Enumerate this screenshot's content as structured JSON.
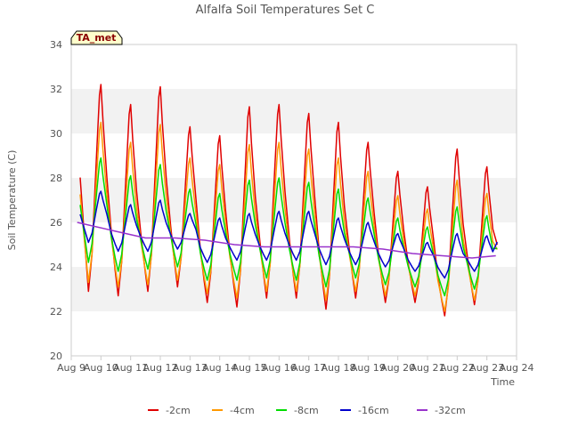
{
  "chart_data": {
    "type": "line",
    "title": "Alfalfa Soil Temperatures Set C",
    "xlabel": "Time",
    "ylabel": "Soil Temperature (C)",
    "ylim": [
      20,
      34
    ],
    "yticks": [
      20,
      22,
      24,
      26,
      28,
      30,
      32,
      34
    ],
    "xlim": [
      9,
      24
    ],
    "xticks": [
      9,
      10,
      11,
      12,
      13,
      14,
      15,
      16,
      17,
      18,
      19,
      20,
      21,
      22,
      23,
      24
    ],
    "xtick_labels": [
      "Aug 9",
      "Aug 10",
      "Aug 11",
      "Aug 12",
      "Aug 13",
      "Aug 14",
      "Aug 15",
      "Aug 16",
      "Aug 17",
      "Aug 18",
      "Aug 19",
      "Aug 20",
      "Aug 21",
      "Aug 22",
      "Aug 23",
      "Aug 24"
    ],
    "grid": "horizontal bands",
    "legend_position": "bottom",
    "annotation": "TA_met",
    "series": [
      {
        "name": "-2cm",
        "color": "#e00000",
        "days": [
          10,
          11,
          12,
          13,
          14,
          15,
          16,
          17,
          18,
          19,
          20,
          21,
          22,
          23
        ],
        "max": [
          32.2,
          31.3,
          32.1,
          30.3,
          29.9,
          31.2,
          31.3,
          30.9,
          30.5,
          29.6,
          28.3,
          27.6,
          29.3,
          28.5
        ],
        "min": [
          22.9,
          22.7,
          22.9,
          23.1,
          22.4,
          22.2,
          22.6,
          22.6,
          22.1,
          22.6,
          22.4,
          22.4,
          21.8,
          22.3
        ]
      },
      {
        "name": "-4cm",
        "color": "#ff9900",
        "days": [
          10,
          11,
          12,
          13,
          14,
          15,
          16,
          17,
          18,
          19,
          20,
          21,
          22,
          23
        ],
        "max": [
          30.5,
          29.6,
          30.4,
          28.9,
          28.6,
          29.5,
          29.6,
          29.3,
          28.9,
          28.3,
          27.2,
          26.6,
          27.9,
          27.3
        ],
        "min": [
          23.3,
          23.1,
          23.2,
          23.4,
          22.8,
          22.6,
          22.9,
          22.9,
          22.5,
          22.9,
          22.7,
          22.7,
          22.0,
          22.5
        ]
      },
      {
        "name": "-8cm",
        "color": "#00dd00",
        "days": [
          10,
          11,
          12,
          13,
          14,
          15,
          16,
          17,
          18,
          19,
          20,
          21,
          22,
          23
        ],
        "max": [
          28.9,
          28.1,
          28.6,
          27.5,
          27.3,
          27.9,
          28.0,
          27.8,
          27.5,
          27.1,
          26.2,
          25.8,
          26.7,
          26.3
        ],
        "min": [
          24.2,
          23.8,
          23.9,
          24.0,
          23.4,
          23.4,
          23.5,
          23.4,
          23.1,
          23.5,
          23.2,
          23.1,
          22.7,
          23.0
        ]
      },
      {
        "name": "-16cm",
        "color": "#0000cc",
        "days": [
          10,
          11,
          12,
          13,
          14,
          15,
          16,
          17,
          18,
          19,
          20,
          21,
          22,
          23
        ],
        "max": [
          27.4,
          26.8,
          27.0,
          26.4,
          26.2,
          26.4,
          26.5,
          26.5,
          26.2,
          26.0,
          25.5,
          25.1,
          25.5,
          25.4
        ],
        "min": [
          25.1,
          24.7,
          24.7,
          24.8,
          24.2,
          24.3,
          24.3,
          24.3,
          24.1,
          24.1,
          24.0,
          23.8,
          23.5,
          23.8
        ]
      },
      {
        "name": "-32cm",
        "color": "#9933cc",
        "days": [
          9.2,
          10.5,
          11.5,
          12.5,
          13.5,
          14.5,
          15.5,
          16.5,
          17.5,
          18.5,
          19.5,
          20.5,
          21.5,
          22.5,
          23.3
        ],
        "level": [
          26.0,
          25.6,
          25.3,
          25.3,
          25.2,
          25.0,
          24.9,
          24.9,
          24.9,
          24.9,
          24.8,
          24.6,
          24.5,
          24.4,
          24.5
        ]
      }
    ]
  }
}
